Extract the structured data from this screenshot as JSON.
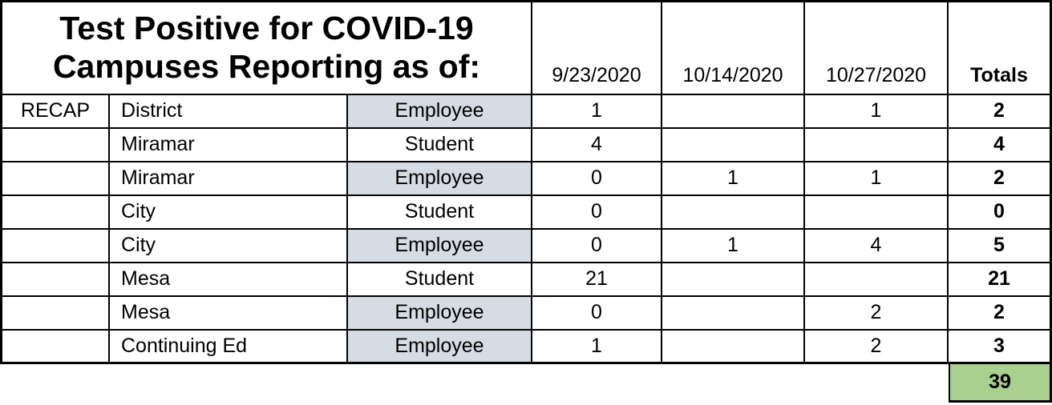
{
  "table": {
    "title_lines": [
      "Test Positive for COVID-19",
      "Campuses Reporting as of:"
    ],
    "recap_label": "RECAP",
    "date_headers": [
      "9/23/2020",
      "10/14/2020",
      "10/27/2020"
    ],
    "totals_header": "Totals",
    "rows": [
      {
        "recap": "RECAP",
        "campus": "District",
        "type": "Employee",
        "values": [
          "1",
          "",
          "1"
        ],
        "total": "2"
      },
      {
        "recap": "",
        "campus": "Miramar",
        "type": "Student",
        "values": [
          "4",
          "",
          ""
        ],
        "total": "4"
      },
      {
        "recap": "",
        "campus": "Miramar",
        "type": "Employee",
        "values": [
          "0",
          "1",
          "1"
        ],
        "total": "2"
      },
      {
        "recap": "",
        "campus": "City",
        "type": "Student",
        "values": [
          "0",
          "",
          ""
        ],
        "total": "0"
      },
      {
        "recap": "",
        "campus": "City",
        "type": "Employee",
        "values": [
          "0",
          "1",
          "4"
        ],
        "total": "5"
      },
      {
        "recap": "",
        "campus": "Mesa",
        "type": "Student",
        "values": [
          "21",
          "",
          ""
        ],
        "total": "21"
      },
      {
        "recap": "",
        "campus": "Mesa",
        "type": "Employee",
        "values": [
          "0",
          "",
          "2"
        ],
        "total": "2"
      },
      {
        "recap": "",
        "campus": "Continuing Ed",
        "type": "Employee",
        "values": [
          "1",
          "",
          "2"
        ],
        "total": "3"
      }
    ],
    "grand_total": "39",
    "colors": {
      "employee_fill": "#d6dce4",
      "grand_total_fill": "#a9d08e",
      "border": "#000000"
    }
  }
}
